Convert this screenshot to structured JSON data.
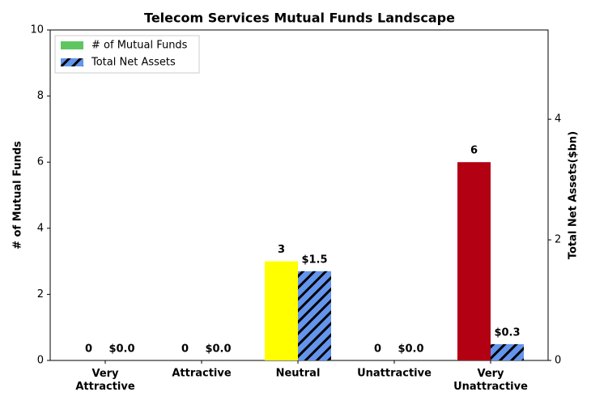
{
  "chart_data": {
    "type": "bar",
    "title": "Telecom Services Mutual Funds Landscape",
    "categories": [
      "Very Attractive",
      "Attractive",
      "Neutral",
      "Unattractive",
      "Very Unattractive"
    ],
    "ylabel": "# of Mutual Funds",
    "y2label": "Total Net Assets($bn)",
    "ylim": [
      0,
      10
    ],
    "yticks": [
      0,
      2,
      4,
      6,
      8,
      10
    ],
    "y2lim": [
      0,
      5.48
    ],
    "y2ticks": [
      0,
      2,
      4
    ],
    "legend": "upper left",
    "series": [
      {
        "name": "# of Mutual Funds",
        "color": "#5fc65f",
        "bar_colors": [
          "#5fc65f",
          "#a8e06a",
          "#ffff00",
          "#ff8c00",
          "#b30013"
        ],
        "values": [
          0,
          0,
          3,
          0,
          6
        ]
      },
      {
        "name": "Total Net Assets",
        "color": "#6495ed",
        "hatch": "//",
        "axis": "y2",
        "values": [
          0,
          0,
          1.48,
          0,
          0.27
        ],
        "value_labels": [
          "$0.0",
          "$0.0",
          "$1.5",
          "$0.0",
          "$0.3"
        ]
      }
    ]
  }
}
